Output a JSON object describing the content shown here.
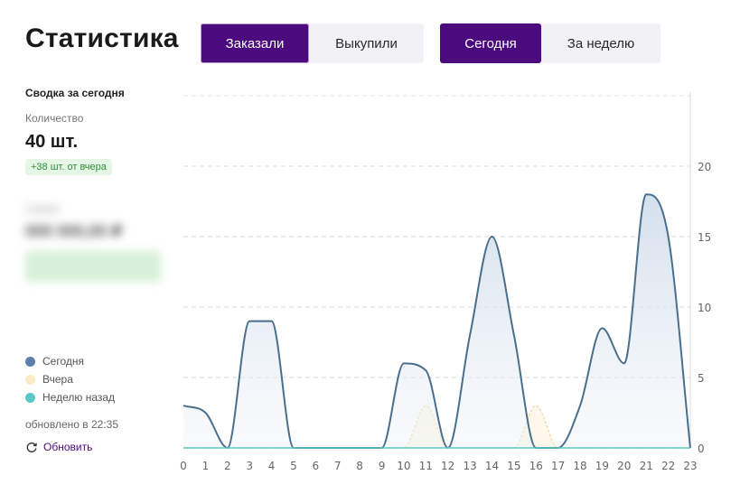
{
  "header": {
    "title": "Статистика"
  },
  "metric_tabs": [
    {
      "label": "Заказали",
      "active": true
    },
    {
      "label": "Выкупили",
      "active": false
    }
  ],
  "period_tabs": [
    {
      "label": "Сегодня",
      "active": true
    },
    {
      "label": "За неделю",
      "active": false
    }
  ],
  "summary": {
    "title": "Сводка за сегодня",
    "quantity_label": "Количество",
    "quantity_value": "40 шт.",
    "delta": "+38 шт. от вчера"
  },
  "legend": [
    {
      "label": "Сегодня",
      "color": "#5a7fa8"
    },
    {
      "label": "Вчера",
      "color": "#fbeac6"
    },
    {
      "label": "Неделю назад",
      "color": "#5ac8c8"
    }
  ],
  "updated_text": "обновлено в 22:35",
  "refresh_label": "Обновить",
  "colors": {
    "accent": "#4b0a7d",
    "today_line": "#4a6f8c",
    "yesterday_line": "#f5dba8",
    "week_ago_line": "#5ac8c8"
  },
  "chart_data": {
    "type": "area",
    "x": [
      0,
      1,
      2,
      3,
      4,
      5,
      6,
      7,
      8,
      9,
      10,
      11,
      12,
      13,
      14,
      15,
      16,
      17,
      18,
      19,
      20,
      21,
      22,
      23
    ],
    "y_ticks": [
      0,
      5,
      10,
      15,
      20
    ],
    "ylim": [
      0,
      25
    ],
    "y_axis_side": "right",
    "grid": true,
    "series": [
      {
        "name": "Сегодня",
        "values": [
          3,
          2.5,
          0,
          9,
          9,
          0,
          0,
          0,
          0,
          0,
          6,
          5.5,
          0,
          8,
          15,
          8,
          0,
          0,
          3,
          8.5,
          6,
          18,
          15,
          0
        ],
        "color": "#4a6f8c"
      },
      {
        "name": "Вчера",
        "values": [
          0,
          0,
          0,
          0,
          0,
          0,
          0,
          0,
          0,
          0,
          0,
          3,
          0,
          0,
          0,
          0,
          3,
          0,
          0,
          0,
          0,
          0,
          0,
          0
        ],
        "color": "#f5dba8"
      },
      {
        "name": "Неделю назад",
        "values": [
          0,
          0,
          0,
          0,
          0,
          0,
          0,
          0,
          0,
          0,
          0,
          0,
          0,
          0,
          0,
          0,
          0,
          0,
          0,
          0,
          0,
          0,
          0,
          0
        ],
        "color": "#5ac8c8"
      }
    ]
  }
}
